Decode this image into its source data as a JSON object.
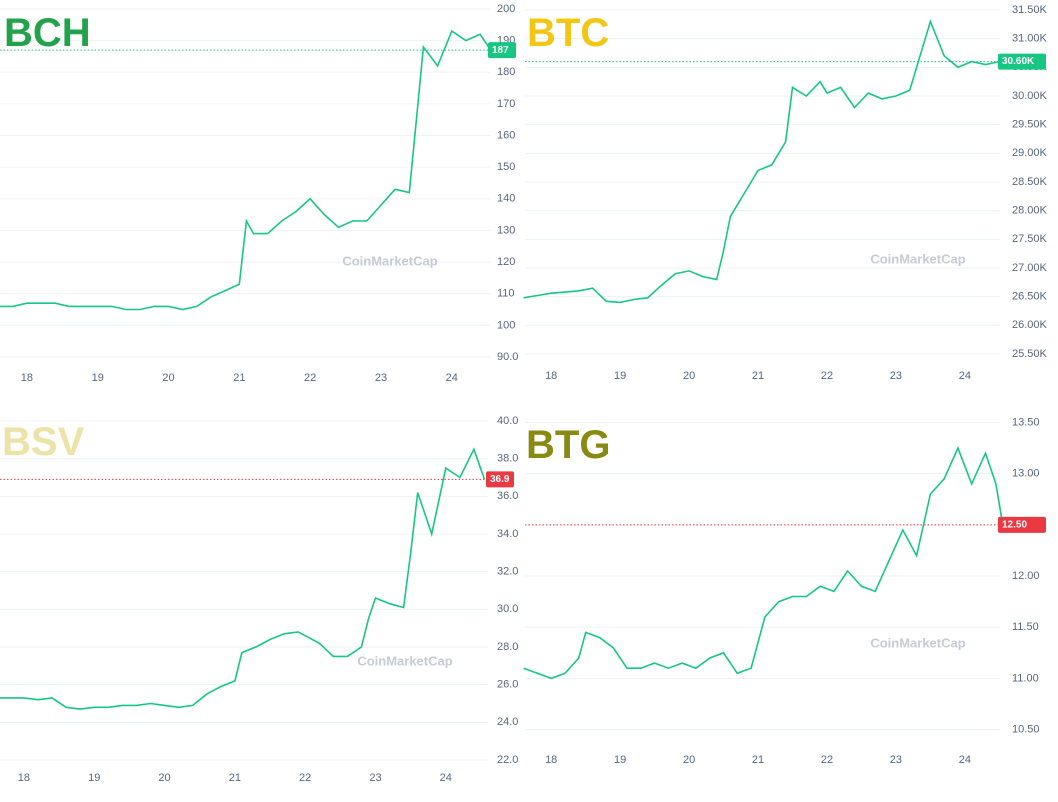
{
  "chart_data": [
    {
      "type": "line",
      "title": "BCH",
      "title_color": "#22a24a",
      "color": "#16c784",
      "watermark": "CoinMarketCap",
      "x": [
        17.6,
        17.8,
        18.0,
        18.2,
        18.4,
        18.6,
        18.8,
        19.0,
        19.2,
        19.4,
        19.6,
        19.8,
        20.0,
        20.2,
        20.4,
        20.6,
        20.8,
        21.0,
        21.1,
        21.2,
        21.4,
        21.6,
        21.8,
        22.0,
        22.2,
        22.4,
        22.6,
        22.8,
        23.0,
        23.2,
        23.4,
        23.5,
        23.6,
        23.8,
        24.0,
        24.2,
        24.4,
        24.55
      ],
      "values": [
        106,
        106,
        107,
        107,
        107,
        106,
        106,
        106,
        106,
        105,
        105,
        106,
        106,
        105,
        106,
        109,
        111,
        113,
        133,
        129,
        129,
        133,
        136,
        140,
        135,
        131,
        133,
        133,
        138,
        143,
        142,
        165,
        188,
        182,
        193,
        190,
        192,
        187
      ],
      "xlim": [
        17.62,
        24.54
      ],
      "xticks": [
        18,
        19,
        20,
        21,
        22,
        23,
        24
      ],
      "ylim": [
        90,
        200
      ],
      "yticks": [
        200,
        190,
        180,
        170,
        160,
        150,
        140,
        130,
        120,
        110,
        100,
        {
          "value": 90,
          "label": "90.0"
        }
      ],
      "grid": true,
      "last_price": 187,
      "last_price_color": "#16c784"
    },
    {
      "type": "line",
      "title": "BTC",
      "title_color": "#f3c613",
      "color": "#16c784",
      "watermark": "CoinMarketCap",
      "x": [
        17.6,
        17.8,
        18.0,
        18.2,
        18.4,
        18.6,
        18.8,
        19.0,
        19.2,
        19.4,
        19.6,
        19.8,
        20.0,
        20.2,
        20.4,
        20.5,
        20.6,
        20.8,
        21.0,
        21.2,
        21.4,
        21.5,
        21.7,
        21.9,
        22.0,
        22.2,
        22.4,
        22.6,
        22.8,
        23.0,
        23.2,
        23.4,
        23.5,
        23.7,
        23.9,
        24.1,
        24.3,
        24.5
      ],
      "values": [
        26480,
        26520,
        26560,
        26580,
        26600,
        26650,
        26420,
        26400,
        26450,
        26480,
        26700,
        26900,
        26950,
        26850,
        26800,
        27300,
        27900,
        28300,
        28700,
        28800,
        29200,
        30150,
        30000,
        30250,
        30050,
        30150,
        29800,
        30050,
        29950,
        30000,
        30100,
        30900,
        31300,
        30700,
        30500,
        30600,
        30550,
        30600
      ],
      "xlim": [
        17.62,
        24.51
      ],
      "xticks": [
        18,
        19,
        20,
        21,
        22,
        23,
        24
      ],
      "ylim": [
        25500,
        31500
      ],
      "yticks": [
        {
          "value": 31500,
          "label": "31.50K"
        },
        {
          "value": 31000,
          "label": "31.00K"
        },
        {
          "value": 30500,
          "label": "30.50K"
        },
        {
          "value": 30000,
          "label": "30.00K"
        },
        {
          "value": 29500,
          "label": "29.50K"
        },
        {
          "value": 29000,
          "label": "29.00K"
        },
        {
          "value": 28500,
          "label": "28.50K"
        },
        {
          "value": 28000,
          "label": "28.00K"
        },
        {
          "value": 27500,
          "label": "27.50K"
        },
        {
          "value": 27000,
          "label": "27.00K"
        },
        {
          "value": 26500,
          "label": "26.50K"
        },
        {
          "value": 26000,
          "label": "26.00K"
        },
        {
          "value": 25500,
          "label": "25.50K"
        }
      ],
      "grid": true,
      "last_price": {
        "value": 30600,
        "label": "30.60K"
      },
      "last_price_color": "#16c784"
    },
    {
      "type": "line",
      "title": "BSV",
      "title_color": "#ece3a8",
      "color": "#16c784",
      "watermark": "CoinMarketCap",
      "x": [
        17.6,
        17.8,
        18.0,
        18.2,
        18.4,
        18.6,
        18.8,
        19.0,
        19.2,
        19.4,
        19.6,
        19.8,
        20.0,
        20.2,
        20.4,
        20.6,
        20.8,
        21.0,
        21.1,
        21.3,
        21.5,
        21.7,
        21.9,
        22.0,
        22.2,
        22.4,
        22.6,
        22.8,
        22.9,
        23.0,
        23.2,
        23.4,
        23.5,
        23.6,
        23.8,
        24.0,
        24.2,
        24.4,
        24.55
      ],
      "values": [
        25.3,
        25.3,
        25.3,
        25.2,
        25.3,
        24.8,
        24.7,
        24.8,
        24.8,
        24.9,
        24.9,
        25.0,
        24.9,
        24.8,
        24.9,
        25.5,
        25.9,
        26.2,
        27.7,
        28.0,
        28.4,
        28.7,
        28.8,
        28.6,
        28.2,
        27.5,
        27.5,
        28.0,
        29.5,
        30.6,
        30.3,
        30.1,
        33,
        36.2,
        34.0,
        37.5,
        37.0,
        38.5,
        36.9
      ],
      "xlim": [
        17.66,
        24.6
      ],
      "xticks": [
        18,
        19,
        20,
        21,
        22,
        23,
        24
      ],
      "ylim": [
        22,
        40
      ],
      "yticks": [
        {
          "value": 40,
          "label": "40.0"
        },
        {
          "value": 38,
          "label": "38.0"
        },
        {
          "value": 36,
          "label": "36.0"
        },
        {
          "value": 34,
          "label": "34.0"
        },
        {
          "value": 32,
          "label": "32.0"
        },
        {
          "value": 30,
          "label": "30.0"
        },
        {
          "value": 28,
          "label": "28.0"
        },
        {
          "value": 26,
          "label": "26.0"
        },
        {
          "value": 24,
          "label": "24.0"
        },
        {
          "value": 22,
          "label": "22.0"
        }
      ],
      "grid": true,
      "last_price": 36.9,
      "last_price_color": "#ea3943"
    },
    {
      "type": "line",
      "title": "BTG",
      "title_color": "#8a8a12",
      "color": "#16c784",
      "watermark": "CoinMarketCap",
      "x": [
        17.6,
        17.8,
        18.0,
        18.2,
        18.4,
        18.5,
        18.7,
        18.9,
        19.1,
        19.3,
        19.5,
        19.7,
        19.9,
        20.1,
        20.3,
        20.5,
        20.7,
        20.9,
        21.1,
        21.3,
        21.5,
        21.7,
        21.9,
        22.1,
        22.3,
        22.5,
        22.7,
        22.9,
        23.1,
        23.3,
        23.5,
        23.7,
        23.9,
        24.1,
        24.3,
        24.45,
        24.55
      ],
      "values": [
        11.1,
        11.05,
        11.0,
        11.05,
        11.2,
        11.45,
        11.4,
        11.3,
        11.1,
        11.1,
        11.15,
        11.1,
        11.15,
        11.1,
        11.2,
        11.25,
        11.05,
        11.1,
        11.6,
        11.75,
        11.8,
        11.8,
        11.9,
        11.85,
        12.05,
        11.9,
        11.85,
        12.15,
        12.45,
        12.2,
        12.8,
        12.95,
        13.25,
        12.9,
        13.2,
        12.9,
        12.5
      ],
      "xlim": [
        17.62,
        24.51
      ],
      "xticks": [
        18,
        19,
        20,
        21,
        22,
        23,
        24
      ],
      "ylim": [
        10.35,
        13.7
      ],
      "yticks": [
        {
          "value": 13.5,
          "label": "13.50"
        },
        {
          "value": 13,
          "label": "13.00"
        },
        {
          "value": 12.5,
          "label": "12.50"
        },
        {
          "value": 12,
          "label": "12.00"
        },
        {
          "value": 11.5,
          "label": "11.50"
        },
        {
          "value": 11,
          "label": "11.00"
        },
        {
          "value": 10.5,
          "label": "10.50"
        }
      ],
      "grid": true,
      "last_price": {
        "value": 12.5,
        "label": "12.50"
      },
      "last_price_color": "#ea3943"
    }
  ]
}
